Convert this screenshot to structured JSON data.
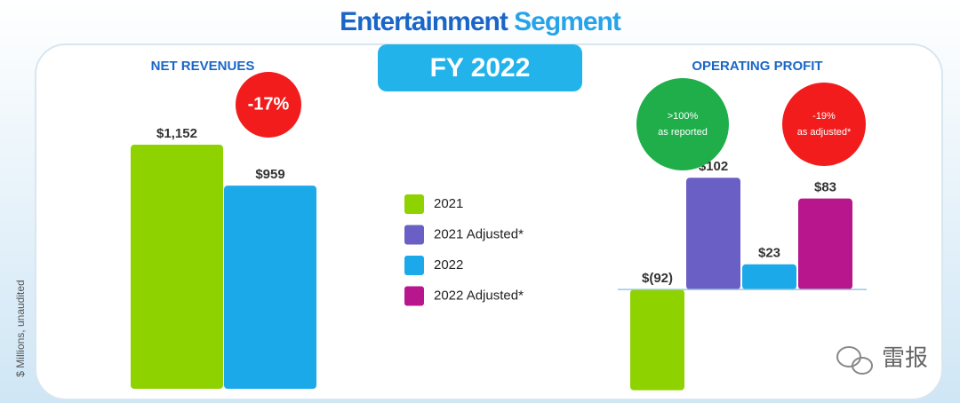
{
  "header": {
    "title_main": "Entertainment",
    "title_accent": "Segment",
    "badge": "FY 2022"
  },
  "axis_note": "$ Millions, unaudited",
  "watermark": "雷报",
  "chart_data": [
    {
      "type": "bar",
      "title": "NET REVENUES",
      "ylim": [
        0,
        1200
      ],
      "series": [
        {
          "color": "#8ed300",
          "values": [
            1152
          ],
          "value_labels": [
            "$1,152"
          ]
        },
        {
          "color": "#1ba9e9",
          "values": [
            959
          ],
          "value_labels": [
            "$959"
          ]
        }
      ],
      "annotations": [
        {
          "lines": [
            "-17%"
          ],
          "color": "#f21c1c"
        }
      ]
    },
    {
      "type": "bar",
      "title": "OPERATING PROFIT",
      "ylim": [
        -100,
        120
      ],
      "series": [
        {
          "name": "2021",
          "color": "#8ed300",
          "values": [
            -92
          ],
          "value_labels": [
            "$(92)"
          ]
        },
        {
          "name": "2021 Adjusted*",
          "color": "#6a5fc4",
          "values": [
            102
          ],
          "value_labels": [
            "$102"
          ]
        },
        {
          "name": "2022",
          "color": "#1ba9e9",
          "values": [
            23
          ],
          "value_labels": [
            "$23"
          ]
        },
        {
          "name": "2022 Adjusted*",
          "color": "#b8168d",
          "values": [
            83
          ],
          "value_labels": [
            "$83"
          ]
        }
      ],
      "annotations": [
        {
          "lines": [
            ">100%",
            "as reported"
          ],
          "color": "#1fae4a"
        },
        {
          "lines": [
            "-19%",
            "as adjusted*"
          ],
          "color": "#f21c1c"
        }
      ]
    }
  ]
}
